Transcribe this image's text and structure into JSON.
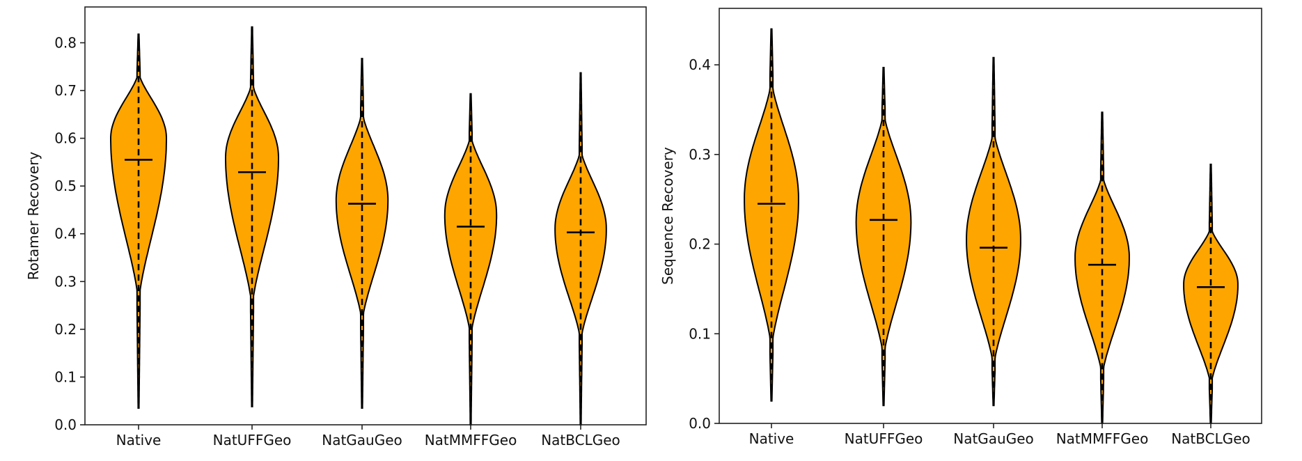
{
  "chart_data": [
    {
      "type": "violin",
      "title": "",
      "xlabel": "",
      "ylabel": "Rotamer Recovery",
      "ylim": [
        0.0,
        0.875
      ],
      "yticks": [
        "0.0",
        "0.1",
        "0.2",
        "0.3",
        "0.4",
        "0.5",
        "0.6",
        "0.7",
        "0.8"
      ],
      "ytick_values": [
        0.0,
        0.1,
        0.2,
        0.3,
        0.4,
        0.5,
        0.6,
        0.7,
        0.8
      ],
      "categories": [
        "Native",
        "NatUFFGeo",
        "NatGauGeo",
        "NatMMFFGeo",
        "NatBCLGeo"
      ],
      "fill_color": "#FFA500",
      "edge_color": "#000000",
      "grid": false,
      "series": [
        {
          "name": "Native",
          "min": 0.035,
          "max": 0.818,
          "median": 0.555,
          "mode": 0.6,
          "upper_body": 0.74,
          "lower_body": 0.25,
          "width": 1.0
        },
        {
          "name": "NatUFFGeo",
          "min": 0.038,
          "max": 0.833,
          "median": 0.529,
          "mode": 0.56,
          "upper_body": 0.72,
          "lower_body": 0.24,
          "width": 0.95
        },
        {
          "name": "NatGauGeo",
          "min": 0.035,
          "max": 0.767,
          "median": 0.463,
          "mode": 0.47,
          "upper_body": 0.66,
          "lower_body": 0.21,
          "width": 0.93
        },
        {
          "name": "NatMMFFGeo",
          "min": 0.0,
          "max": 0.693,
          "median": 0.415,
          "mode": 0.44,
          "upper_body": 0.61,
          "lower_body": 0.18,
          "width": 0.93
        },
        {
          "name": "NatBCLGeo",
          "min": 0.0,
          "max": 0.737,
          "median": 0.403,
          "mode": 0.41,
          "upper_body": 0.58,
          "lower_body": 0.17,
          "width": 0.92
        }
      ]
    },
    {
      "type": "violin",
      "title": "",
      "xlabel": "",
      "ylabel": "Sequence Recovery",
      "ylim": [
        0.0,
        0.463
      ],
      "yticks": [
        "0.0",
        "0.1",
        "0.2",
        "0.3",
        "0.4"
      ],
      "ytick_values": [
        0.0,
        0.1,
        0.2,
        0.3,
        0.4
      ],
      "categories": [
        "Native",
        "NatUFFGeo",
        "NatGauGeo",
        "NatMMFFGeo",
        "NatBCLGeo"
      ],
      "fill_color": "#FFA500",
      "edge_color": "#000000",
      "grid": false,
      "series": [
        {
          "name": "Native",
          "min": 0.025,
          "max": 0.44,
          "median": 0.245,
          "mode": 0.25,
          "upper_body": 0.385,
          "lower_body": 0.08,
          "width": 0.95
        },
        {
          "name": "NatUFFGeo",
          "min": 0.02,
          "max": 0.397,
          "median": 0.227,
          "mode": 0.225,
          "upper_body": 0.35,
          "lower_body": 0.07,
          "width": 0.96
        },
        {
          "name": "NatGauGeo",
          "min": 0.02,
          "max": 0.408,
          "median": 0.196,
          "mode": 0.205,
          "upper_body": 0.33,
          "lower_body": 0.06,
          "width": 0.95
        },
        {
          "name": "NatMMFFGeo",
          "min": 0.0,
          "max": 0.347,
          "median": 0.177,
          "mode": 0.185,
          "upper_body": 0.28,
          "lower_body": 0.05,
          "width": 0.95
        },
        {
          "name": "NatBCLGeo",
          "min": 0.0,
          "max": 0.289,
          "median": 0.152,
          "mode": 0.155,
          "upper_body": 0.22,
          "lower_body": 0.04,
          "width": 0.95
        }
      ]
    }
  ]
}
